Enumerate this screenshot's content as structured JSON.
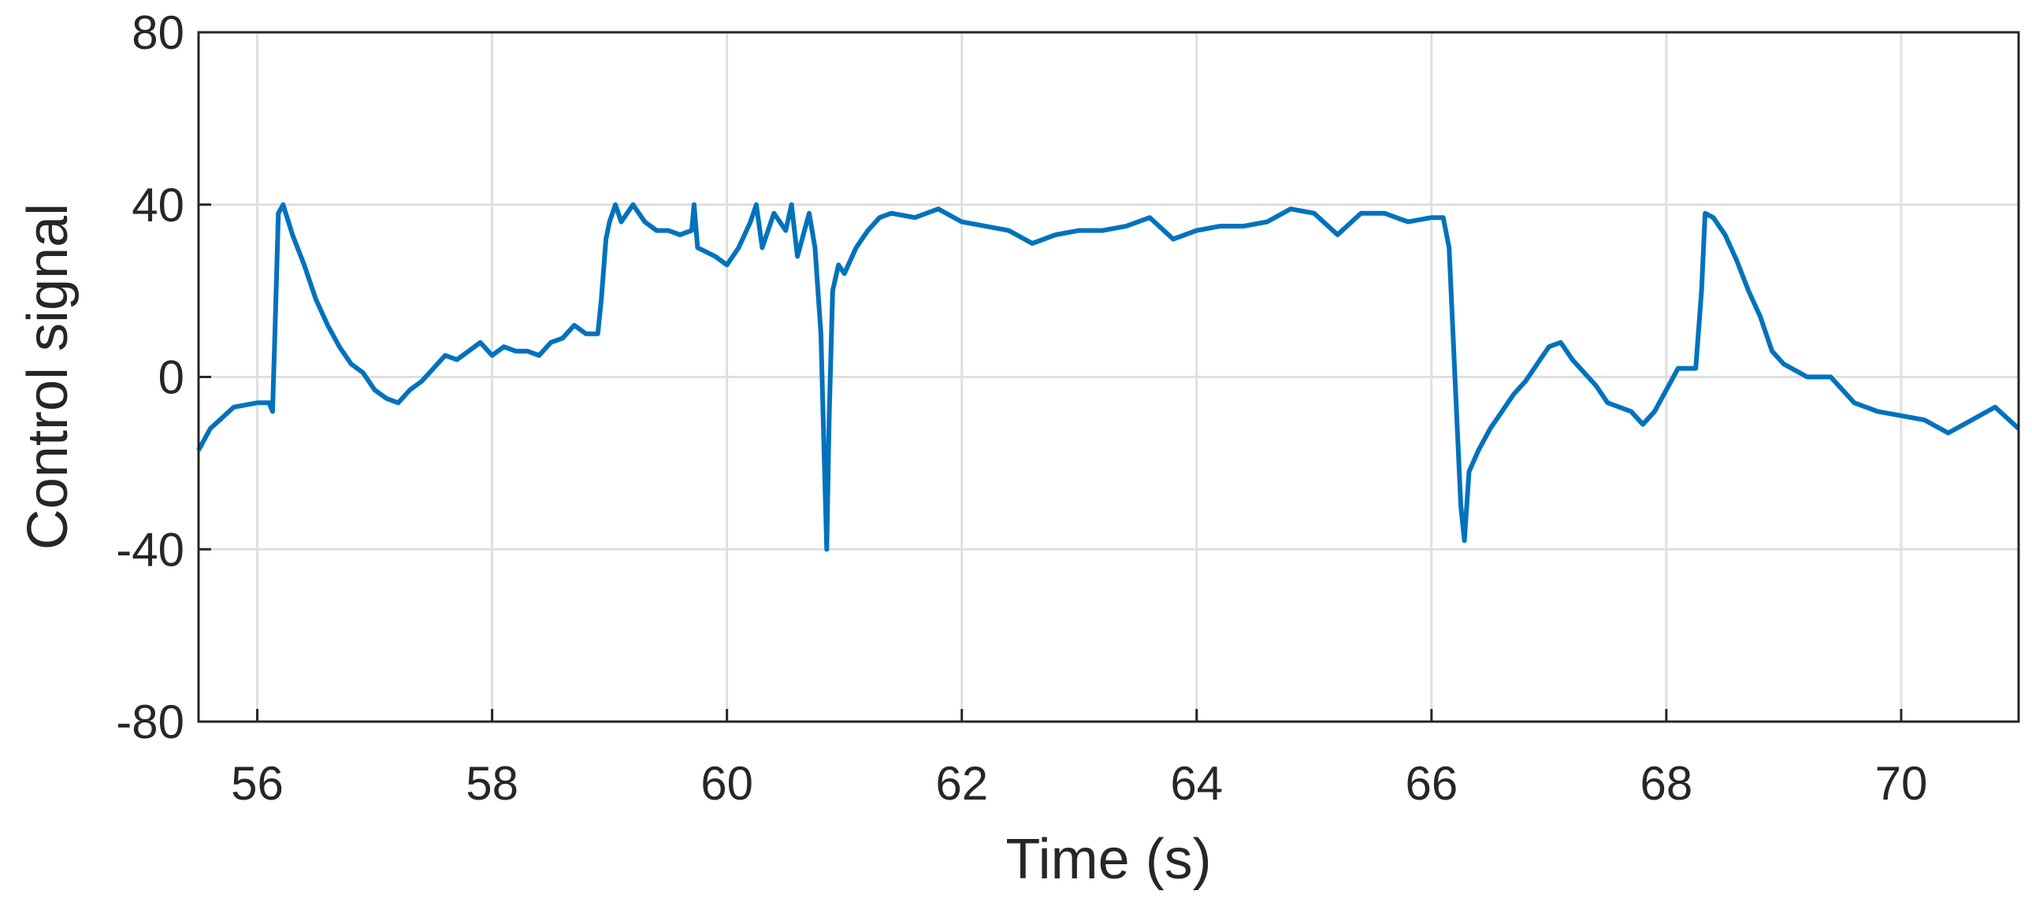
{
  "chart_data": {
    "type": "line",
    "xlabel": "Time (s)",
    "ylabel": "Control signal",
    "color": "#0072bd",
    "grid": true,
    "xlim": [
      55.5,
      71
    ],
    "xticks": [
      56,
      58,
      60,
      62,
      64,
      66,
      68,
      70
    ],
    "ylim": [
      -80,
      80
    ],
    "yticks": [
      -80,
      -40,
      0,
      40,
      80
    ],
    "x": [
      55.5,
      55.6,
      55.8,
      56.0,
      56.1,
      56.13,
      56.15,
      56.18,
      56.22,
      56.3,
      56.4,
      56.5,
      56.6,
      56.7,
      56.8,
      56.9,
      57.0,
      57.1,
      57.2,
      57.3,
      57.4,
      57.5,
      57.6,
      57.7,
      57.8,
      57.9,
      58.0,
      58.1,
      58.2,
      58.3,
      58.4,
      58.5,
      58.6,
      58.7,
      58.8,
      58.9,
      58.93,
      58.97,
      59.0,
      59.05,
      59.1,
      59.2,
      59.3,
      59.4,
      59.5,
      59.6,
      59.7,
      59.72,
      59.75,
      59.9,
      60.0,
      60.1,
      60.2,
      60.25,
      60.3,
      60.4,
      60.5,
      60.55,
      60.6,
      60.7,
      60.75,
      60.8,
      60.83,
      60.85,
      60.87,
      60.9,
      60.95,
      61.0,
      61.1,
      61.2,
      61.3,
      61.4,
      61.6,
      61.8,
      62.0,
      62.2,
      62.4,
      62.6,
      62.8,
      63.0,
      63.2,
      63.4,
      63.6,
      63.8,
      64.0,
      64.2,
      64.4,
      64.6,
      64.8,
      65.0,
      65.2,
      65.4,
      65.6,
      65.8,
      66.0,
      66.1,
      66.15,
      66.2,
      66.25,
      66.28,
      66.32,
      66.4,
      66.5,
      66.6,
      66.7,
      66.8,
      66.9,
      67.0,
      67.1,
      67.2,
      67.3,
      67.4,
      67.5,
      67.6,
      67.7,
      67.8,
      67.9,
      68.0,
      68.1,
      68.2,
      68.25,
      68.3,
      68.33,
      68.4,
      68.5,
      68.6,
      68.7,
      68.8,
      68.9,
      69.0,
      69.2,
      69.4,
      69.6,
      69.8,
      70.0,
      70.2,
      70.4,
      70.6,
      70.8,
      71.0
    ],
    "values": [
      -17,
      -12,
      -7,
      -6,
      -6,
      -8,
      10,
      38,
      40,
      33,
      26,
      18,
      12,
      7,
      3,
      1,
      -3,
      -5,
      -6,
      -3,
      -1,
      2,
      5,
      4,
      6,
      8,
      5,
      7,
      6,
      6,
      5,
      8,
      9,
      12,
      10,
      10,
      18,
      32,
      36,
      40,
      36,
      40,
      36,
      34,
      34,
      33,
      34,
      40,
      30,
      28,
      26,
      30,
      36,
      40,
      30,
      38,
      34,
      40,
      28,
      38,
      30,
      10,
      -20,
      -40,
      -10,
      20,
      26,
      24,
      30,
      34,
      37,
      38,
      37,
      39,
      36,
      35,
      34,
      31,
      33,
      34,
      34,
      35,
      37,
      32,
      34,
      35,
      35,
      36,
      39,
      38,
      33,
      38,
      38,
      36,
      37,
      37,
      30,
      0,
      -30,
      -38,
      -22,
      -17,
      -12,
      -8,
      -4,
      -1,
      3,
      7,
      8,
      4,
      1,
      -2,
      -6,
      -7,
      -8,
      -11,
      -8,
      -3,
      2,
      2,
      2,
      20,
      38,
      37,
      33,
      27,
      20,
      14,
      6,
      3,
      0,
      0,
      -6,
      -8,
      -9,
      -10,
      -13,
      -10,
      -7,
      -12
    ]
  }
}
